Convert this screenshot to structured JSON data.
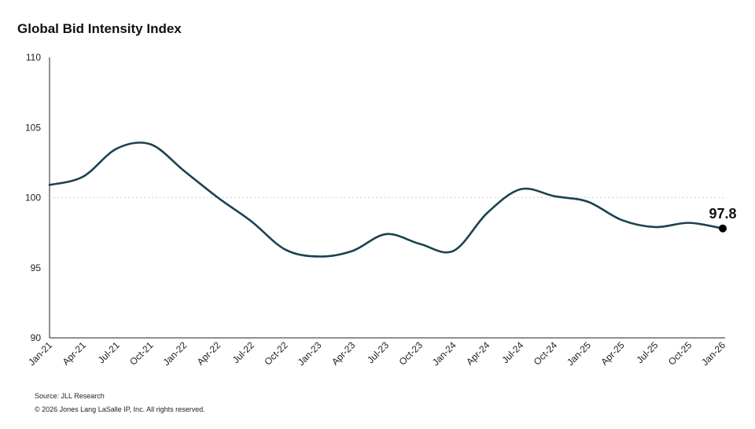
{
  "chart_data": {
    "type": "line",
    "title": "Global Bid Intensity Index",
    "xlabel": "",
    "ylabel": "",
    "ylim": [
      90,
      110
    ],
    "yticks": [
      "90",
      "95",
      "100",
      "105",
      "110"
    ],
    "xtick_labels": [
      "Jan-21",
      "Apr-21",
      "Jul-21",
      "Oct-21",
      "Jan-22",
      "Apr-22",
      "Jul-22",
      "Oct-22",
      "Jan-23",
      "Apr-23",
      "Jul-23",
      "Oct-23",
      "Jan-24",
      "Apr-24",
      "Jul-24",
      "Oct-24",
      "Jan-25",
      "Apr-25",
      "Jul-25",
      "Oct-25",
      "Jan-26"
    ],
    "reference_line": 100,
    "grid": false,
    "series": [
      {
        "values": [
          100.9,
          101.5,
          103.5,
          103.8,
          101.9,
          100.0,
          98.3,
          96.3,
          95.8,
          96.2,
          97.4,
          96.7,
          96.2,
          98.9,
          100.6,
          100.1,
          99.7,
          98.4,
          97.9,
          98.2,
          97.8
        ]
      }
    ],
    "end_label": "97.8",
    "line_color": "#1b4250"
  },
  "footer": {
    "source": "Source: JLL Research",
    "copyright": "© 2026 Jones Lang LaSalle IP, Inc. All rights reserved."
  }
}
